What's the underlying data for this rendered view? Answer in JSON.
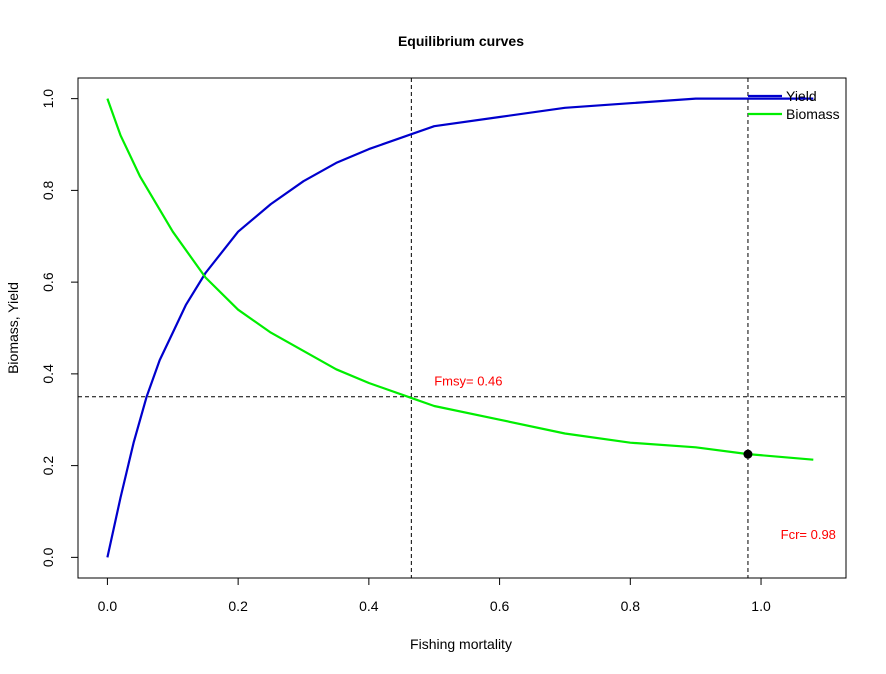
{
  "chart_data": {
    "type": "line",
    "title": "Equilibrium curves",
    "xlabel": "Fishing mortality",
    "ylabel": "Biomass, Yield",
    "xlim": [
      -0.045,
      1.13
    ],
    "ylim": [
      -0.045,
      1.045
    ],
    "x_ticks": [
      "0.0",
      "0.2",
      "0.4",
      "0.6",
      "0.8",
      "1.0"
    ],
    "y_ticks": [
      "0.0",
      "0.2",
      "0.4",
      "0.6",
      "0.8",
      "1.0"
    ],
    "x_tick_values": [
      0,
      0.2,
      0.4,
      0.6,
      0.8,
      1.0
    ],
    "y_tick_values": [
      0,
      0.2,
      0.4,
      0.6,
      0.8,
      1.0
    ],
    "grid": false,
    "legend": {
      "position": "top-right",
      "entries": [
        {
          "name": "Yield",
          "color": "#0000cd"
        },
        {
          "name": "Biomass",
          "color": "#00ee00"
        }
      ]
    },
    "series": [
      {
        "name": "Yield",
        "color": "#0000cd",
        "x": [
          0,
          0.02,
          0.04,
          0.06,
          0.08,
          0.1,
          0.12,
          0.15,
          0.2,
          0.25,
          0.3,
          0.35,
          0.4,
          0.46,
          0.5,
          0.6,
          0.7,
          0.8,
          0.9,
          1.0,
          1.08
        ],
        "y": [
          0,
          0.13,
          0.25,
          0.35,
          0.43,
          0.49,
          0.55,
          0.62,
          0.71,
          0.77,
          0.82,
          0.86,
          0.89,
          0.92,
          0.94,
          0.96,
          0.98,
          0.99,
          1.0,
          1.0,
          1.0
        ]
      },
      {
        "name": "Biomass",
        "color": "#00ee00",
        "x": [
          0,
          0.02,
          0.05,
          0.1,
          0.15,
          0.2,
          0.25,
          0.3,
          0.35,
          0.4,
          0.46,
          0.5,
          0.6,
          0.7,
          0.8,
          0.9,
          0.98,
          1.08
        ],
        "y": [
          1.0,
          0.92,
          0.83,
          0.71,
          0.61,
          0.54,
          0.49,
          0.45,
          0.41,
          0.38,
          0.35,
          0.33,
          0.3,
          0.27,
          0.25,
          0.24,
          0.225,
          0.213
        ]
      }
    ],
    "reference_lines": {
      "vertical": [
        0.465,
        0.98
      ],
      "horizontal": [
        0.35
      ],
      "style": "dashed",
      "color": "#000000"
    },
    "point": {
      "x": 0.98,
      "y": 0.225,
      "color": "#000000"
    },
    "annotations": [
      {
        "text": "Fmsy= 0.46",
        "x": 0.5,
        "y": 0.375,
        "color": "#ff0000"
      },
      {
        "text": "Fcr= 0.98",
        "x": 1.03,
        "y": 0.04,
        "color": "#ff0000"
      }
    ]
  }
}
